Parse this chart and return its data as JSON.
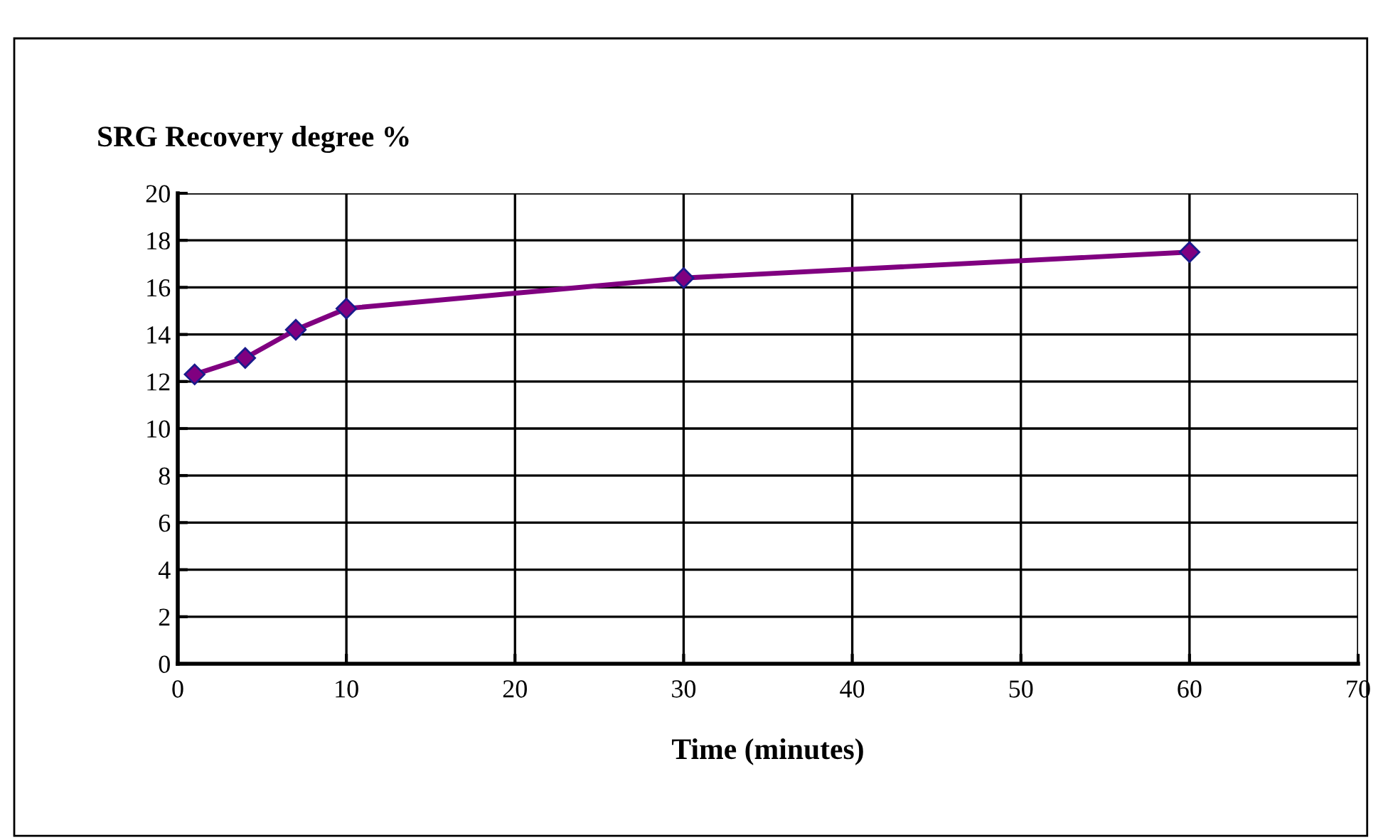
{
  "chart_data": {
    "type": "line",
    "ylabel": "SRG Recovery degree %",
    "xlabel": "Time (minutes)",
    "x": [
      1,
      4,
      7,
      10,
      30,
      60
    ],
    "series": [
      {
        "color": "#800080",
        "values": [
          12.3,
          13.0,
          14.2,
          15.1,
          16.4,
          17.5
        ]
      }
    ],
    "xlim": [
      0,
      70
    ],
    "xticks": [
      0,
      10,
      20,
      30,
      40,
      50,
      60,
      70
    ],
    "ylim": [
      0,
      20
    ],
    "yticks": [
      0,
      2,
      4,
      6,
      8,
      10,
      12,
      14,
      16,
      18,
      20
    ],
    "grid": true,
    "marker": "diamond",
    "line_style": "solid"
  }
}
